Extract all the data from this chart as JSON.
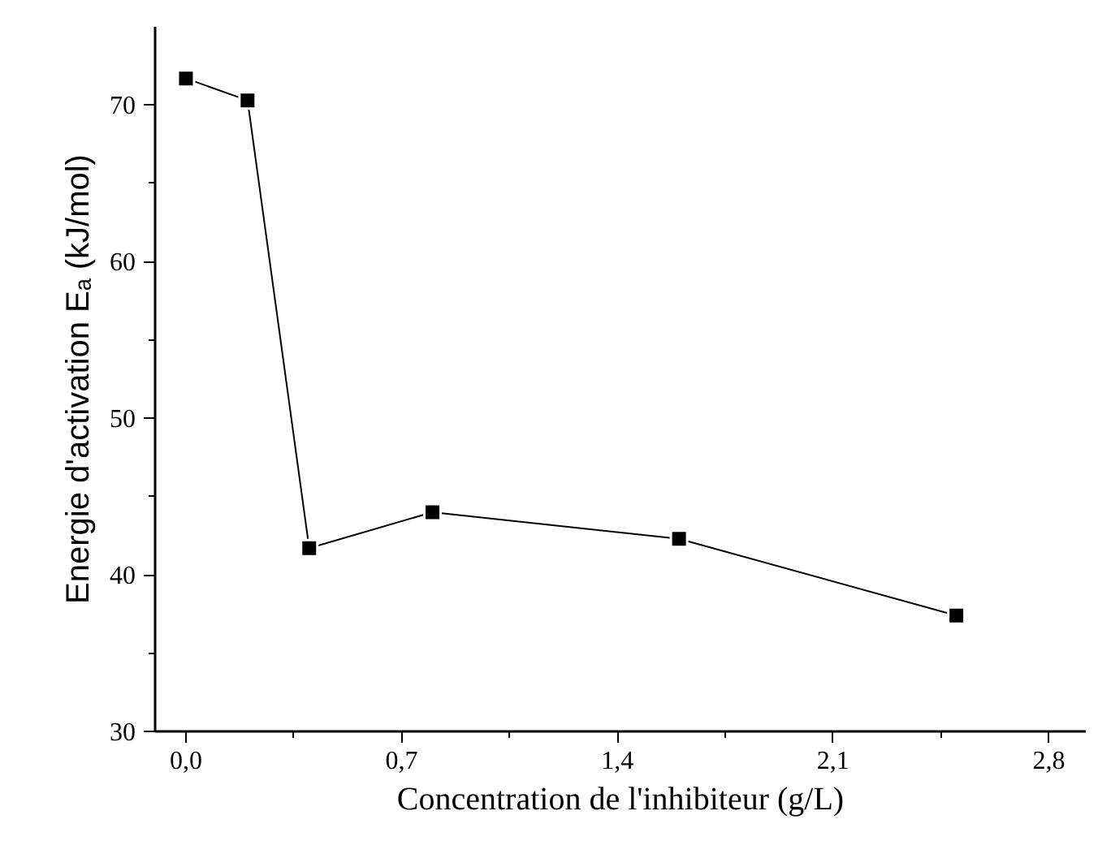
{
  "chart_data": {
    "type": "line",
    "xlabel": "Concentration de l'inhibiteur (g/L)",
    "ylabel": "Energie d'activation Eₐ (kJ/mol)",
    "x": [
      0,
      0.2,
      0.4,
      0.8,
      1.6,
      2.5
    ],
    "series": [
      {
        "color": "#000000",
        "values": [
          71.7,
          70.3,
          41.7,
          44.0,
          42.3,
          37.4
        ]
      }
    ],
    "xlim": [
      -0.1,
      2.92
    ],
    "ylim": [
      30,
      75
    ],
    "xticks": [
      {
        "value": 0,
        "label": "0,0"
      },
      {
        "value": 0.7,
        "label": "0,7"
      },
      {
        "value": 1.4,
        "label": "1,4"
      },
      {
        "value": 2.1,
        "label": "2,1"
      },
      {
        "value": 2.8,
        "label": "2,8"
      }
    ],
    "yticks": [
      30,
      40,
      50,
      60,
      70
    ],
    "marker": "square",
    "line_style": "solid"
  }
}
